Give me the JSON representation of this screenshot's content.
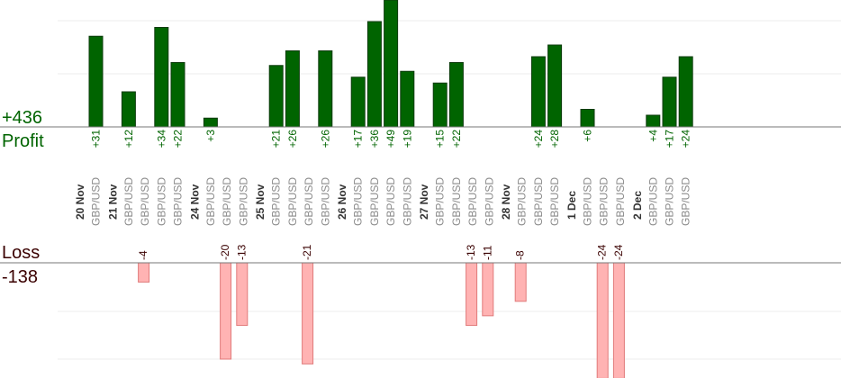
{
  "chart_data": {
    "type": "bar",
    "profit": {
      "label": "Profit",
      "total": "+436",
      "color": "#006400",
      "stroke": "#0d3b0d",
      "ylim": [
        0,
        36
      ]
    },
    "loss": {
      "label": "Loss",
      "total": "-138",
      "color": "#ffb3b3",
      "stroke": "#e07a7a",
      "ylim": [
        0,
        24
      ]
    },
    "pair": "GBP/USD",
    "days": [
      {
        "date": "20 Nov",
        "trades": [
          31
        ]
      },
      {
        "date": "21 Nov",
        "trades": [
          12,
          -4,
          34,
          22
        ]
      },
      {
        "date": "24 Nov",
        "trades": [
          3,
          -20,
          -13
        ]
      },
      {
        "date": "25 Nov",
        "trades": [
          21,
          26,
          -21,
          26
        ]
      },
      {
        "date": "26 Nov",
        "trades": [
          17,
          36,
          49,
          19
        ]
      },
      {
        "date": "27 Nov",
        "trades": [
          15,
          22,
          -13,
          -11
        ]
      },
      {
        "date": "28 Nov",
        "trades": [
          -8,
          24,
          28
        ]
      },
      {
        "date": "1 Dec",
        "trades": [
          6,
          -24,
          -24
        ]
      },
      {
        "date": "2 Dec",
        "trades": [
          4,
          17,
          24
        ]
      }
    ]
  }
}
